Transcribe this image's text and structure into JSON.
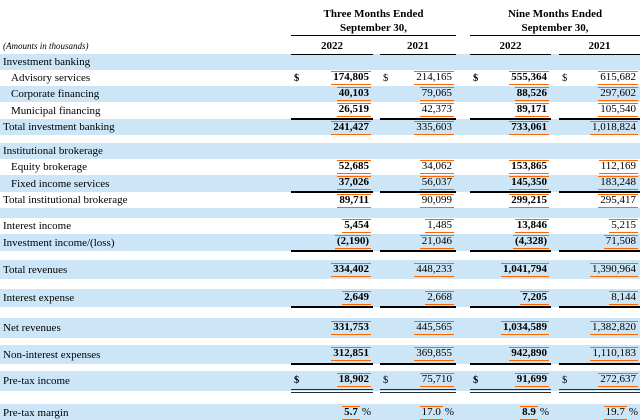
{
  "meta": {
    "amounts_note": "(Amounts in thousands)"
  },
  "header": {
    "groups": [
      {
        "line1": "Three Months Ended",
        "line2": "September 30,",
        "years": [
          "2022",
          "2021"
        ]
      },
      {
        "line1": "Nine Months Ended",
        "line2": "September 30,",
        "years": [
          "2022",
          "2021"
        ]
      }
    ]
  },
  "table": {
    "currency_symbol": "$",
    "percent_symbol": "%",
    "colors": {
      "row_highlight": "#cce6f7",
      "fact_highlight": "#ff6600",
      "rule": "#000000"
    },
    "columns": [
      "Label",
      "Three Months Ended September 30, 2022",
      "Three Months Ended September 30, 2021",
      "Nine Months Ended September 30, 2022",
      "Nine Months Ended September 30, 2021"
    ],
    "rows": [
      {
        "type": "section",
        "label": "Investment banking",
        "bg": "blue",
        "h": 16
      },
      {
        "type": "data",
        "label": "Advisory services",
        "indent": true,
        "bg": "white",
        "dollar": true,
        "values": [
          "174,805",
          "214,165",
          "555,364",
          "615,682"
        ],
        "h": 16
      },
      {
        "type": "data",
        "label": "Corporate financing",
        "indent": true,
        "bg": "blue",
        "values": [
          "40,103",
          "79,065",
          "88,526",
          "297,602"
        ],
        "h": 16
      },
      {
        "type": "data",
        "label": "Municipal financing",
        "indent": true,
        "bg": "white",
        "values": [
          "26,519",
          "42,373",
          "89,171",
          "105,540"
        ],
        "rule": "single",
        "h": 17
      },
      {
        "type": "data",
        "label": "Total investment banking",
        "bg": "blue",
        "values": [
          "241,427",
          "335,603",
          "733,061",
          "1,018,824"
        ],
        "h": 16
      },
      {
        "type": "spacer",
        "bg": "white",
        "h": 8
      },
      {
        "type": "section",
        "label": "Institutional brokerage",
        "bg": "blue",
        "h": 16
      },
      {
        "type": "data",
        "label": "Equity brokerage",
        "indent": true,
        "bg": "white",
        "values": [
          "52,685",
          "34,062",
          "153,865",
          "112,169"
        ],
        "h": 16
      },
      {
        "type": "data",
        "label": "Fixed income services",
        "indent": true,
        "bg": "blue",
        "values": [
          "37,026",
          "56,037",
          "145,350",
          "183,248"
        ],
        "rule": "single",
        "h": 17
      },
      {
        "type": "data",
        "label": "Total institutional brokerage",
        "bg": "white",
        "values": [
          "89,711",
          "90,099",
          "299,215",
          "295,417"
        ],
        "h": 16
      },
      {
        "type": "spacer",
        "bg": "blue",
        "h": 10
      },
      {
        "type": "data",
        "label": "Interest income",
        "bg": "white",
        "values": [
          "5,454",
          "1,485",
          "13,846",
          "5,215"
        ],
        "h": 16
      },
      {
        "type": "data",
        "label": "Investment income/(loss)",
        "bg": "blue",
        "values": [
          "(2,190)",
          "21,046",
          "(4,328)",
          "71,508"
        ],
        "rule": "single",
        "h": 17
      },
      {
        "type": "spacer",
        "bg": "white",
        "h": 9
      },
      {
        "type": "data",
        "label": "Total revenues",
        "bg": "blue",
        "values": [
          "334,402",
          "448,233",
          "1,041,794",
          "1,390,964"
        ],
        "h": 19
      },
      {
        "type": "spacer",
        "bg": "white",
        "h": 10
      },
      {
        "type": "data",
        "label": "Interest expense",
        "bg": "blue",
        "values": [
          "2,649",
          "2,668",
          "7,205",
          "8,144"
        ],
        "rule": "single",
        "h": 18
      },
      {
        "type": "spacer",
        "bg": "white",
        "h": 11
      },
      {
        "type": "data",
        "label": "Net revenues",
        "bg": "blue",
        "values": [
          "331,753",
          "445,565",
          "1,034,589",
          "1,382,820"
        ],
        "h": 20
      },
      {
        "type": "spacer",
        "bg": "white",
        "h": 7
      },
      {
        "type": "data",
        "label": "Non-interest expenses",
        "bg": "blue",
        "values": [
          "312,851",
          "369,855",
          "942,890",
          "1,110,183"
        ],
        "rule": "single",
        "h": 19
      },
      {
        "type": "spacer",
        "bg": "white",
        "h": 7
      },
      {
        "type": "data",
        "label": "Pre-tax income",
        "bg": "blue",
        "dollar": true,
        "values": [
          "18,902",
          "75,710",
          "91,699",
          "272,637"
        ],
        "rule": "double",
        "h": 20
      },
      {
        "type": "spacer",
        "bg": "white",
        "h": 13
      },
      {
        "type": "data",
        "label": "Pre-tax margin",
        "bg": "blue",
        "pct": true,
        "values": [
          "5.7",
          "17.0",
          "8.9",
          "19.7"
        ],
        "h": 18
      }
    ]
  }
}
